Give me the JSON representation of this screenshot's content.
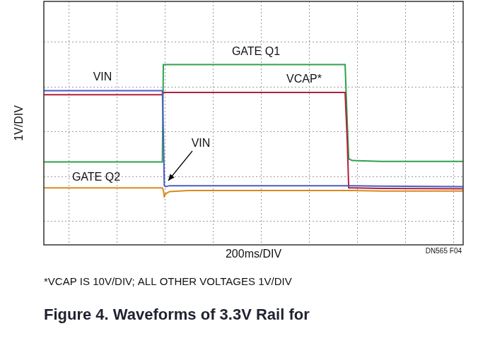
{
  "chart_data": {
    "type": "line",
    "title": "Figure 4. Waveforms of 3.3V Rail for",
    "x_label": "200ms/DIV",
    "y_label": "1V/DIV",
    "footnote": "*VCAP IS 10V/DIV; ALL OTHER VOLTAGES 1V/DIV",
    "source": "DN565 F04",
    "annotations": [
      "VIN"
    ],
    "x": [
      -103,
      390,
      394,
      398,
      404,
      420,
      500,
      800,
      1150,
      1159,
      1165,
      1180,
      1300,
      1641
    ],
    "series": [
      {
        "name": "VIN",
        "color": "#4a5cc4",
        "values": [
          1.92,
          1.92,
          1.0,
          -0.2,
          -0.22,
          -0.2,
          -0.2,
          -0.2,
          -0.2,
          -0.2,
          -0.2,
          -0.2,
          -0.21,
          -0.22
        ]
      },
      {
        "name": "VCAP*",
        "color": "#b3203c",
        "values": [
          1.83,
          1.83,
          1.88,
          1.88,
          1.88,
          1.88,
          1.88,
          1.88,
          1.88,
          0.8,
          -0.25,
          -0.25,
          -0.26,
          -0.27
        ]
      },
      {
        "name": "GATE Q1",
        "color": "#2ea24c",
        "values": [
          0.33,
          0.33,
          2.5,
          2.5,
          2.5,
          2.5,
          2.5,
          2.5,
          2.5,
          1.2,
          0.4,
          0.36,
          0.34,
          0.34
        ]
      },
      {
        "name": "GATE Q2",
        "color": "#d98a1f",
        "values": [
          -0.25,
          -0.25,
          -0.3,
          -0.44,
          -0.38,
          -0.33,
          -0.31,
          -0.31,
          -0.31,
          -0.31,
          -0.31,
          -0.31,
          -0.32,
          -0.32
        ]
      }
    ],
    "xlim": [
      -103,
      1641
    ],
    "xticks": [
      0,
      200,
      400,
      600,
      800,
      1000,
      1200,
      1400,
      1600
    ],
    "ylim": [
      -1.52,
      3.91
    ],
    "yticks": [
      -1,
      0,
      1,
      2,
      3
    ],
    "grid": true,
    "tick_labels": false
  }
}
